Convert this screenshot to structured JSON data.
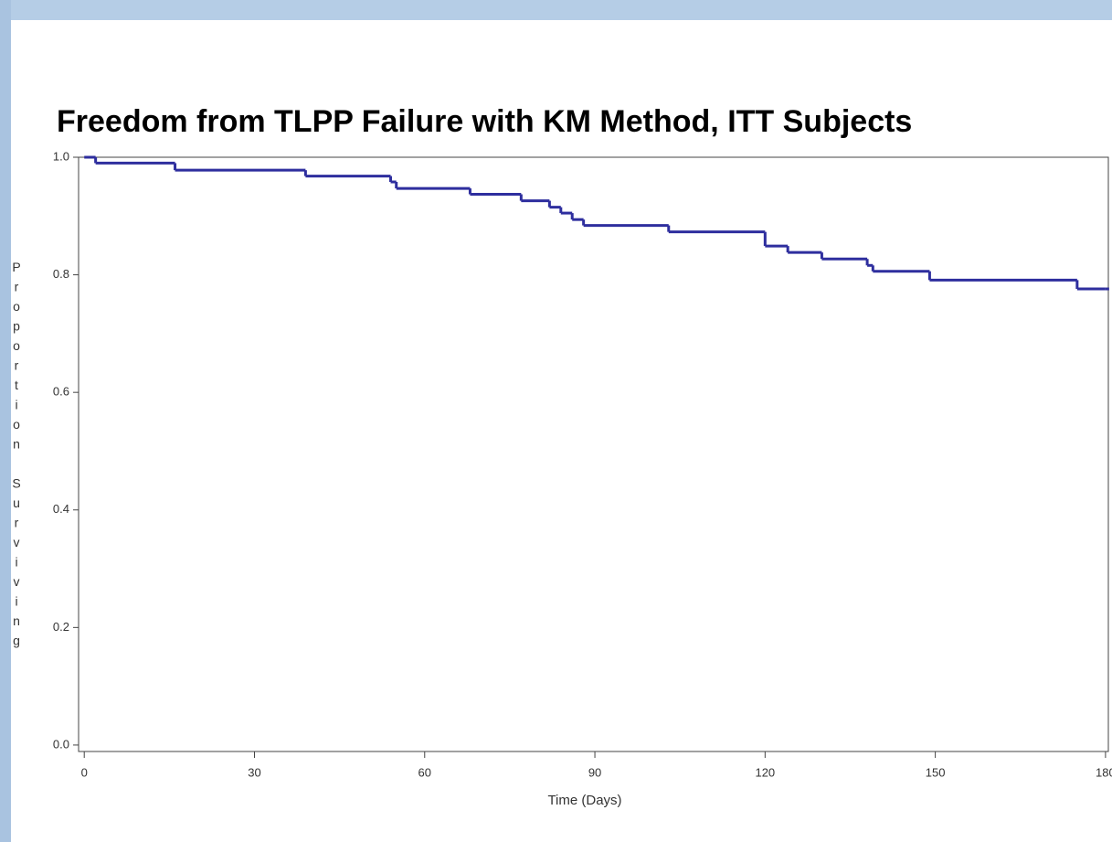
{
  "chart_data": {
    "type": "line",
    "step": "post",
    "title": "Freedom from TLPP Failure with KM Method, ITT Subjects",
    "x_label": "Time (Days)",
    "y_label": "Proportion Surviving",
    "x": [
      0,
      2,
      16,
      39,
      54,
      55,
      68,
      77,
      82,
      84,
      86,
      88,
      103,
      120,
      124,
      130,
      138,
      139,
      149,
      175,
      180
    ],
    "series": [
      {
        "name": "Proportion Surviving",
        "color": "#2e2e9e",
        "values": [
          1.0,
          0.99,
          0.978,
          0.968,
          0.958,
          0.947,
          0.937,
          0.926,
          0.915,
          0.905,
          0.894,
          0.884,
          0.873,
          0.849,
          0.838,
          0.827,
          0.816,
          0.806,
          0.791,
          0.776,
          0.776
        ]
      }
    ],
    "xlim": [
      -1,
      180.5
    ],
    "ylim": [
      -0.011,
      1.0
    ],
    "xticks": [
      0,
      30,
      60,
      90,
      120,
      150,
      180
    ],
    "yticks": [
      {
        "value": 0,
        "label": "0.0"
      },
      0.2,
      0.4,
      0.6,
      0.8,
      {
        "value": 1,
        "label": "1.0"
      }
    ]
  }
}
